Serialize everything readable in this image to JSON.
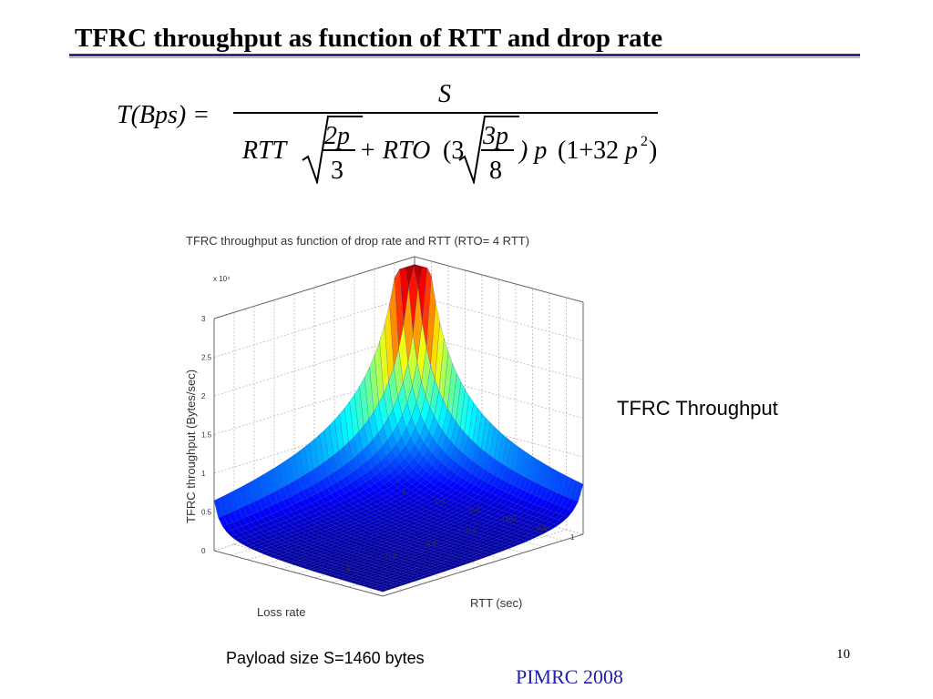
{
  "slide": {
    "title": "TFRC throughput as function of RTT and drop rate",
    "side_caption": "TFRC Throughput",
    "payload_note": "Payload size S=1460 bytes",
    "conference": "PIMRC 2008",
    "page_number": "10"
  },
  "formula": {
    "lhs": "T(Bps) =",
    "numerator": "S",
    "rtt": "RTT",
    "two_p": "2p",
    "three_den": "3",
    "plus_rto": "+ RTO",
    "open_three": "(3",
    "three_p": "3p",
    "eight": "8",
    "close_p": ") p",
    "one_plus": "(1+32",
    "p_sq": "p",
    "sq": "2",
    "close": ")"
  },
  "chart_data": {
    "type": "surface",
    "title": "TFRC throughput as function of drop rate and RTT (RTO= 4 RTT)",
    "zlabel": "TFRC throughput (Bytes/sec)",
    "xlabel": "Loss rate",
    "ylabel": "RTT (sec)",
    "z_multiplier": "x 10⁴",
    "z_ticks": [
      "0",
      "0.5",
      "1",
      "1.5",
      "2",
      "2.5",
      "3"
    ],
    "loss_ticks": [
      "0.2",
      "0.4",
      "0.6",
      "0.8",
      "1"
    ],
    "rtt_ticks": [
      "0",
      "0.2",
      "0.4",
      "0.6",
      "0.8",
      "1"
    ],
    "zlim": [
      0,
      3
    ],
    "loss_range": [
      0,
      1
    ],
    "rtt_range": [
      0,
      1
    ],
    "peak_z": 2.9,
    "colormap": "jet",
    "grid": true
  }
}
